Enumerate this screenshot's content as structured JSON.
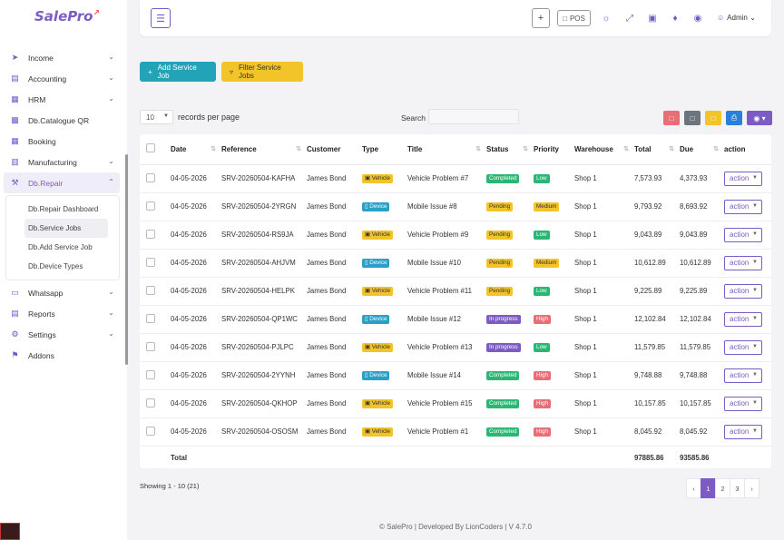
{
  "brand": {
    "name": "SalePro",
    "accent": "#7c5cc4"
  },
  "sidebar": {
    "items": [
      {
        "label": "Income",
        "icon": "rocket-icon",
        "chevron": true
      },
      {
        "label": "Accounting",
        "icon": "wallet-icon",
        "chevron": true
      },
      {
        "label": "HRM",
        "icon": "briefcase-icon",
        "chevron": true
      },
      {
        "label": "Db.Catalogue QR",
        "icon": "qr-icon",
        "chevron": false
      },
      {
        "label": "Booking",
        "icon": "calendar-icon",
        "chevron": false
      },
      {
        "label": "Manufacturing",
        "icon": "factory-icon",
        "chevron": true
      },
      {
        "label": "Db.Repair",
        "icon": "wrench-icon",
        "chevron": true,
        "active": true
      }
    ],
    "submenu": [
      {
        "label": "Db.Repair Dashboard"
      },
      {
        "label": "Db.Service Jobs",
        "active": true
      },
      {
        "label": "Db.Add Service Job"
      },
      {
        "label": "Db.Device Types"
      }
    ],
    "items_after": [
      {
        "label": "Whatsapp",
        "icon": "chat-icon",
        "chevron": true
      },
      {
        "label": "Reports",
        "icon": "document-icon",
        "chevron": true
      },
      {
        "label": "Settings",
        "icon": "gear-icon",
        "chevron": true
      },
      {
        "label": "Addons",
        "icon": "flag-icon",
        "chevron": false
      }
    ]
  },
  "topbar": {
    "pos_label": "POS",
    "user_label": "Admin"
  },
  "actions": {
    "add_label": "Add Service Job",
    "filter_label": "Filter Service Jobs"
  },
  "table_controls": {
    "length_value": "10",
    "length_label": "records per page",
    "search_label": "Search"
  },
  "table": {
    "columns": [
      "Date",
      "Reference",
      "Customer",
      "Type",
      "Title",
      "Status",
      "Priority",
      "Warehouse",
      "Total",
      "Due",
      "action"
    ],
    "rows": [
      {
        "date": "04-05-2026",
        "ref": "SRV-20260504-KAFHA",
        "customer": "James Bond",
        "type": "Vehicle",
        "title": "Vehicle Problem #7",
        "status": "Completed",
        "priority": "Low",
        "warehouse": "Shop 1",
        "total": "7,573.93",
        "due": "4,373.93"
      },
      {
        "date": "04-05-2026",
        "ref": "SRV-20260504-2YRGN",
        "customer": "James Bond",
        "type": "Device",
        "title": "Mobile Issue #8",
        "status": "Pending",
        "priority": "Medium",
        "warehouse": "Shop 1",
        "total": "9,793.92",
        "due": "8,693.92"
      },
      {
        "date": "04-05-2026",
        "ref": "SRV-20260504-RS9JA",
        "customer": "James Bond",
        "type": "Vehicle",
        "title": "Vehicle Problem #9",
        "status": "Pending",
        "priority": "Low",
        "warehouse": "Shop 1",
        "total": "9,043.89",
        "due": "9,043.89"
      },
      {
        "date": "04-05-2026",
        "ref": "SRV-20260504-AHJVM",
        "customer": "James Bond",
        "type": "Device",
        "title": "Mobile Issue #10",
        "status": "Pending",
        "priority": "Medium",
        "warehouse": "Shop 1",
        "total": "10,612.89",
        "due": "10,612.89"
      },
      {
        "date": "04-05-2026",
        "ref": "SRV-20260504-HELPK",
        "customer": "James Bond",
        "type": "Vehicle",
        "title": "Vehicle Problem #11",
        "status": "Pending",
        "priority": "Low",
        "warehouse": "Shop 1",
        "total": "9,225.89",
        "due": "9,225.89"
      },
      {
        "date": "04-05-2026",
        "ref": "SRV-20260504-QP1WC",
        "customer": "James Bond",
        "type": "Device",
        "title": "Mobile Issue #12",
        "status": "In progress",
        "priority": "High",
        "warehouse": "Shop 1",
        "total": "12,102.84",
        "due": "12,102.84"
      },
      {
        "date": "04-05-2026",
        "ref": "SRV-20260504-PJLPC",
        "customer": "James Bond",
        "type": "Vehicle",
        "title": "Vehicle Problem #13",
        "status": "In progress",
        "priority": "Low",
        "warehouse": "Shop 1",
        "total": "11,579.85",
        "due": "11,579.85"
      },
      {
        "date": "04-05-2026",
        "ref": "SRV-20260504-2YYNH",
        "customer": "James Bond",
        "type": "Device",
        "title": "Mobile Issue #14",
        "status": "Completed",
        "priority": "High",
        "warehouse": "Shop 1",
        "total": "9,748.88",
        "due": "9,748.88"
      },
      {
        "date": "04-05-2026",
        "ref": "SRV-20260504-QKHOP",
        "customer": "James Bond",
        "type": "Vehicle",
        "title": "Vehicle Problem #15",
        "status": "Completed",
        "priority": "High",
        "warehouse": "Shop 1",
        "total": "10,157.85",
        "due": "10,157.85"
      },
      {
        "date": "04-05-2026",
        "ref": "SRV-20260504-OSOSM",
        "customer": "James Bond",
        "type": "Vehicle",
        "title": "Vehicle Problem #1",
        "status": "Completed",
        "priority": "High",
        "warehouse": "Shop 1",
        "total": "8,045.92",
        "due": "8,045.92"
      }
    ],
    "action_label": "action",
    "totals": {
      "label": "Total",
      "total": "97885.86",
      "due": "93585.86"
    }
  },
  "pagination": {
    "info": "Showing 1 - 10 (21)",
    "pages": [
      "1",
      "2",
      "3"
    ],
    "active": "1"
  },
  "footer": {
    "text": "© SalePro | Developed By LionCoders | V 4.7.0"
  }
}
